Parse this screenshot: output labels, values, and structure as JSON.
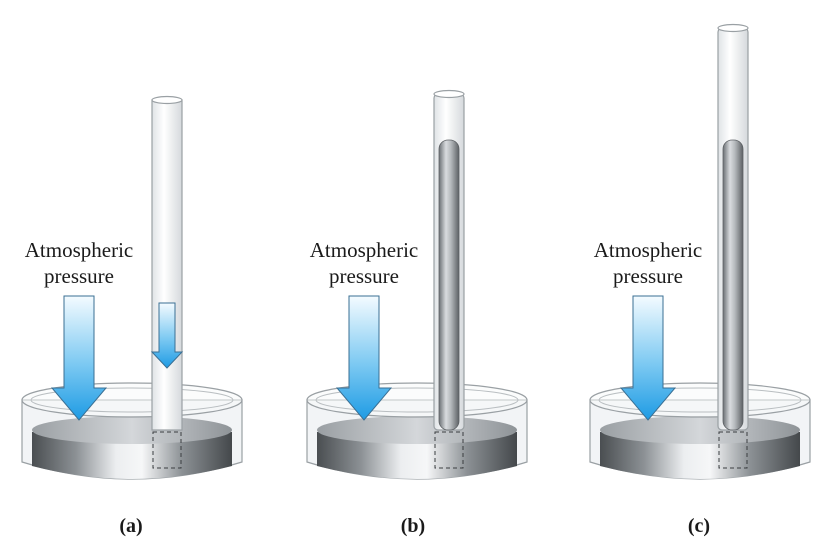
{
  "panels": [
    {
      "caption": "(a)",
      "label_line1": "Atmospheric",
      "label_line2": "pressure",
      "mercury_fill": 0.0
    },
    {
      "caption": "(b)",
      "label_line1": "Atmospheric",
      "label_line2": "pressure",
      "mercury_fill": 0.85
    },
    {
      "caption": "(c)",
      "label_line1": "Atmospheric",
      "label_line2": "pressure",
      "mercury_fill": 0.75
    }
  ],
  "colors": {
    "arrow_top": "#f4fbff",
    "arrow_bottom": "#1e9be4",
    "mercury_dark": "#55595c",
    "mercury_light": "#e4e6e8",
    "glass_edge": "#9aa0a4",
    "text": "#1a1a1a"
  }
}
